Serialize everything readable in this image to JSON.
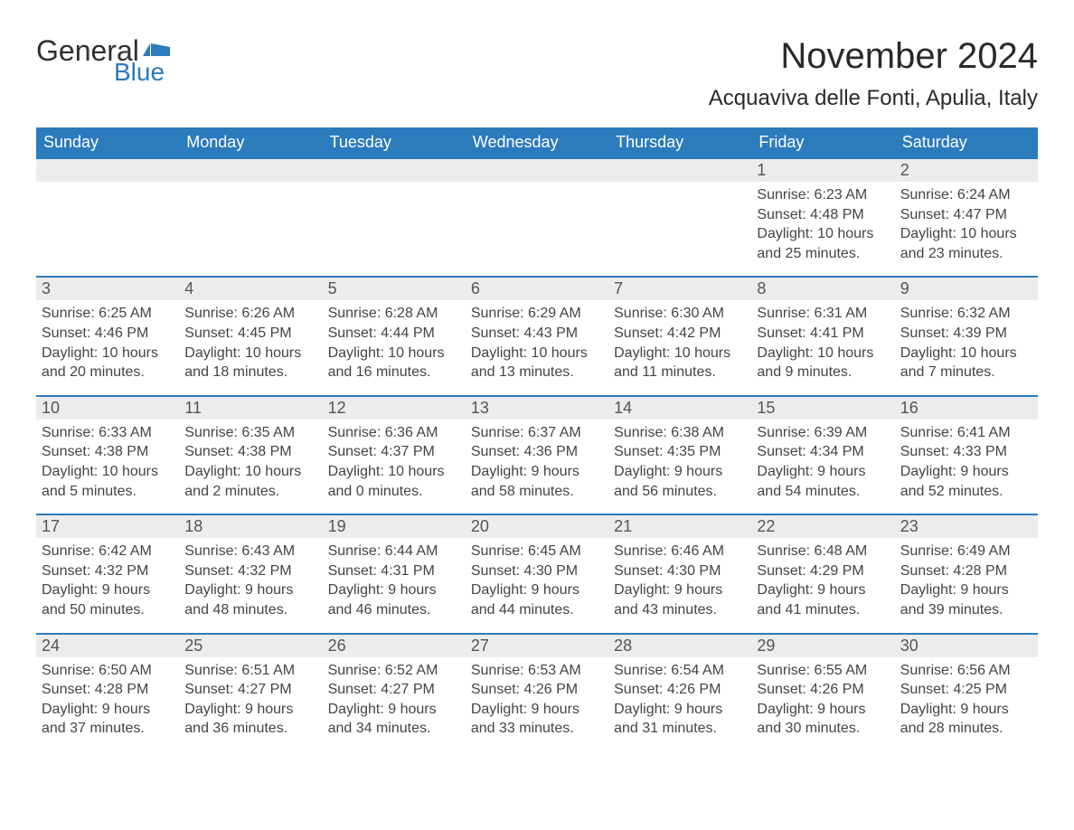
{
  "logo": {
    "text_general": "General",
    "text_blue": "Blue",
    "flag_color": "#2b7bbd"
  },
  "header": {
    "month_title": "November 2024",
    "location": "Acquaviva delle Fonti, Apulia, Italy"
  },
  "colors": {
    "header_bg": "#2b7bbd",
    "header_text": "#ffffff",
    "daynum_bg": "#ececec",
    "daynum_text": "#555555",
    "body_text": "#444444",
    "page_bg": "#ffffff",
    "rule": "#2b7bbd"
  },
  "typography": {
    "title_fontsize": 40,
    "location_fontsize": 24,
    "weekday_fontsize": 18,
    "daynum_fontsize": 18,
    "body_fontsize": 16,
    "font_family": "Arial"
  },
  "calendar": {
    "weekdays": [
      "Sunday",
      "Monday",
      "Tuesday",
      "Wednesday",
      "Thursday",
      "Friday",
      "Saturday"
    ],
    "weeks": [
      [
        {
          "day": null
        },
        {
          "day": null
        },
        {
          "day": null
        },
        {
          "day": null
        },
        {
          "day": null
        },
        {
          "day": 1,
          "sunrise": "Sunrise: 6:23 AM",
          "sunset": "Sunset: 4:48 PM",
          "daylight1": "Daylight: 10 hours",
          "daylight2": "and 25 minutes."
        },
        {
          "day": 2,
          "sunrise": "Sunrise: 6:24 AM",
          "sunset": "Sunset: 4:47 PM",
          "daylight1": "Daylight: 10 hours",
          "daylight2": "and 23 minutes."
        }
      ],
      [
        {
          "day": 3,
          "sunrise": "Sunrise: 6:25 AM",
          "sunset": "Sunset: 4:46 PM",
          "daylight1": "Daylight: 10 hours",
          "daylight2": "and 20 minutes."
        },
        {
          "day": 4,
          "sunrise": "Sunrise: 6:26 AM",
          "sunset": "Sunset: 4:45 PM",
          "daylight1": "Daylight: 10 hours",
          "daylight2": "and 18 minutes."
        },
        {
          "day": 5,
          "sunrise": "Sunrise: 6:28 AM",
          "sunset": "Sunset: 4:44 PM",
          "daylight1": "Daylight: 10 hours",
          "daylight2": "and 16 minutes."
        },
        {
          "day": 6,
          "sunrise": "Sunrise: 6:29 AM",
          "sunset": "Sunset: 4:43 PM",
          "daylight1": "Daylight: 10 hours",
          "daylight2": "and 13 minutes."
        },
        {
          "day": 7,
          "sunrise": "Sunrise: 6:30 AM",
          "sunset": "Sunset: 4:42 PM",
          "daylight1": "Daylight: 10 hours",
          "daylight2": "and 11 minutes."
        },
        {
          "day": 8,
          "sunrise": "Sunrise: 6:31 AM",
          "sunset": "Sunset: 4:41 PM",
          "daylight1": "Daylight: 10 hours",
          "daylight2": "and 9 minutes."
        },
        {
          "day": 9,
          "sunrise": "Sunrise: 6:32 AM",
          "sunset": "Sunset: 4:39 PM",
          "daylight1": "Daylight: 10 hours",
          "daylight2": "and 7 minutes."
        }
      ],
      [
        {
          "day": 10,
          "sunrise": "Sunrise: 6:33 AM",
          "sunset": "Sunset: 4:38 PM",
          "daylight1": "Daylight: 10 hours",
          "daylight2": "and 5 minutes."
        },
        {
          "day": 11,
          "sunrise": "Sunrise: 6:35 AM",
          "sunset": "Sunset: 4:38 PM",
          "daylight1": "Daylight: 10 hours",
          "daylight2": "and 2 minutes."
        },
        {
          "day": 12,
          "sunrise": "Sunrise: 6:36 AM",
          "sunset": "Sunset: 4:37 PM",
          "daylight1": "Daylight: 10 hours",
          "daylight2": "and 0 minutes."
        },
        {
          "day": 13,
          "sunrise": "Sunrise: 6:37 AM",
          "sunset": "Sunset: 4:36 PM",
          "daylight1": "Daylight: 9 hours",
          "daylight2": "and 58 minutes."
        },
        {
          "day": 14,
          "sunrise": "Sunrise: 6:38 AM",
          "sunset": "Sunset: 4:35 PM",
          "daylight1": "Daylight: 9 hours",
          "daylight2": "and 56 minutes."
        },
        {
          "day": 15,
          "sunrise": "Sunrise: 6:39 AM",
          "sunset": "Sunset: 4:34 PM",
          "daylight1": "Daylight: 9 hours",
          "daylight2": "and 54 minutes."
        },
        {
          "day": 16,
          "sunrise": "Sunrise: 6:41 AM",
          "sunset": "Sunset: 4:33 PM",
          "daylight1": "Daylight: 9 hours",
          "daylight2": "and 52 minutes."
        }
      ],
      [
        {
          "day": 17,
          "sunrise": "Sunrise: 6:42 AM",
          "sunset": "Sunset: 4:32 PM",
          "daylight1": "Daylight: 9 hours",
          "daylight2": "and 50 minutes."
        },
        {
          "day": 18,
          "sunrise": "Sunrise: 6:43 AM",
          "sunset": "Sunset: 4:32 PM",
          "daylight1": "Daylight: 9 hours",
          "daylight2": "and 48 minutes."
        },
        {
          "day": 19,
          "sunrise": "Sunrise: 6:44 AM",
          "sunset": "Sunset: 4:31 PM",
          "daylight1": "Daylight: 9 hours",
          "daylight2": "and 46 minutes."
        },
        {
          "day": 20,
          "sunrise": "Sunrise: 6:45 AM",
          "sunset": "Sunset: 4:30 PM",
          "daylight1": "Daylight: 9 hours",
          "daylight2": "and 44 minutes."
        },
        {
          "day": 21,
          "sunrise": "Sunrise: 6:46 AM",
          "sunset": "Sunset: 4:30 PM",
          "daylight1": "Daylight: 9 hours",
          "daylight2": "and 43 minutes."
        },
        {
          "day": 22,
          "sunrise": "Sunrise: 6:48 AM",
          "sunset": "Sunset: 4:29 PM",
          "daylight1": "Daylight: 9 hours",
          "daylight2": "and 41 minutes."
        },
        {
          "day": 23,
          "sunrise": "Sunrise: 6:49 AM",
          "sunset": "Sunset: 4:28 PM",
          "daylight1": "Daylight: 9 hours",
          "daylight2": "and 39 minutes."
        }
      ],
      [
        {
          "day": 24,
          "sunrise": "Sunrise: 6:50 AM",
          "sunset": "Sunset: 4:28 PM",
          "daylight1": "Daylight: 9 hours",
          "daylight2": "and 37 minutes."
        },
        {
          "day": 25,
          "sunrise": "Sunrise: 6:51 AM",
          "sunset": "Sunset: 4:27 PM",
          "daylight1": "Daylight: 9 hours",
          "daylight2": "and 36 minutes."
        },
        {
          "day": 26,
          "sunrise": "Sunrise: 6:52 AM",
          "sunset": "Sunset: 4:27 PM",
          "daylight1": "Daylight: 9 hours",
          "daylight2": "and 34 minutes."
        },
        {
          "day": 27,
          "sunrise": "Sunrise: 6:53 AM",
          "sunset": "Sunset: 4:26 PM",
          "daylight1": "Daylight: 9 hours",
          "daylight2": "and 33 minutes."
        },
        {
          "day": 28,
          "sunrise": "Sunrise: 6:54 AM",
          "sunset": "Sunset: 4:26 PM",
          "daylight1": "Daylight: 9 hours",
          "daylight2": "and 31 minutes."
        },
        {
          "day": 29,
          "sunrise": "Sunrise: 6:55 AM",
          "sunset": "Sunset: 4:26 PM",
          "daylight1": "Daylight: 9 hours",
          "daylight2": "and 30 minutes."
        },
        {
          "day": 30,
          "sunrise": "Sunrise: 6:56 AM",
          "sunset": "Sunset: 4:25 PM",
          "daylight1": "Daylight: 9 hours",
          "daylight2": "and 28 minutes."
        }
      ]
    ]
  }
}
